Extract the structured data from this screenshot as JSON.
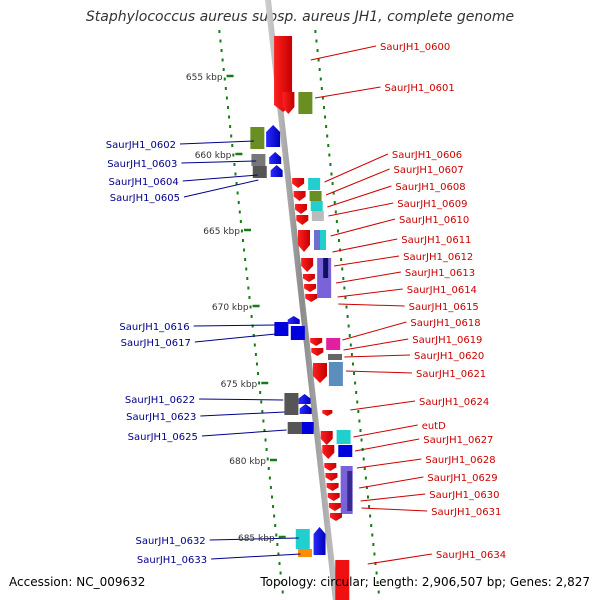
{
  "title": "Staphylococcus aureus subsp. aureus JH1, complete genome",
  "footer": {
    "accession": "Accession: NC_009632",
    "summary": "Topology: circular; Length: 2,906,507 bp; Genes: 2,827"
  },
  "colors": {
    "forward_label": "#cc0000",
    "reverse_label": "#00008b",
    "backbone": "#9a9a9a",
    "ruler_ticks": "#1a7a1a"
  },
  "scale": {
    "unit": "kbp",
    "ticks": [
      {
        "label": "655 kbp",
        "value": 655
      },
      {
        "label": "660 kbp",
        "value": 660
      },
      {
        "label": "665 kbp",
        "value": 665
      },
      {
        "label": "670 kbp",
        "value": 670
      },
      {
        "label": "675 kbp",
        "value": 675
      },
      {
        "label": "680 kbp",
        "value": 680
      },
      {
        "label": "685 kbp",
        "value": 685
      }
    ]
  },
  "forward_labels": [
    "SaurJH1_0600",
    "SaurJH1_0601",
    "SaurJH1_0606",
    "SaurJH1_0607",
    "SaurJH1_0608",
    "SaurJH1_0609",
    "SaurJH1_0610",
    "SaurJH1_0611",
    "SaurJH1_0612",
    "SaurJH1_0613",
    "SaurJH1_0614",
    "SaurJH1_0615",
    "SaurJH1_0618",
    "SaurJH1_0619",
    "SaurJH1_0620",
    "SaurJH1_0621",
    "SaurJH1_0624",
    "eutD",
    "SaurJH1_0627",
    "SaurJH1_0628",
    "SaurJH1_0629",
    "SaurJH1_0630",
    "SaurJH1_0631",
    "SaurJH1_0634"
  ],
  "reverse_labels": [
    "SaurJH1_0602",
    "SaurJH1_0603",
    "SaurJH1_0604",
    "SaurJH1_0605",
    "SaurJH1_0616",
    "SaurJH1_0617",
    "SaurJH1_0622",
    "SaurJH1_0623",
    "SaurJH1_0625",
    "SaurJH1_0632",
    "SaurJH1_0633"
  ]
}
